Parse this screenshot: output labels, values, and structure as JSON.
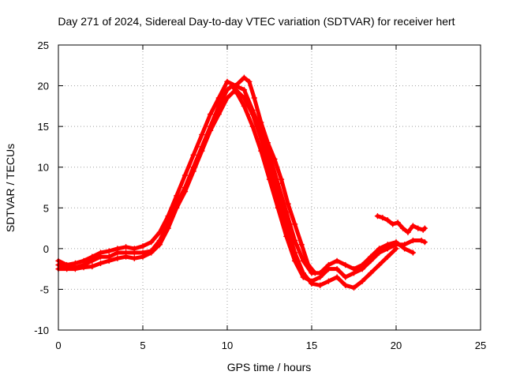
{
  "chart_data": {
    "type": "scatter",
    "title": "Day 271 of 2024, Sidereal Day-to-day VTEC variation (SDTVAR) for receiver hert",
    "xlabel": "GPS time / hours",
    "ylabel": "SDTVAR / TECUs",
    "xlim": [
      0,
      25
    ],
    "ylim": [
      -10,
      25
    ],
    "xticks": [
      0,
      5,
      10,
      15,
      20,
      25
    ],
    "yticks": [
      -10,
      -5,
      0,
      5,
      10,
      15,
      20,
      25
    ],
    "grid": true,
    "color": "#ff0000",
    "series": [
      {
        "name": "satellite-track-1",
        "x": [
          0.0,
          0.5,
          1.0,
          1.5,
          2.0,
          2.5,
          3.0,
          3.5,
          4.0,
          4.5,
          5.0,
          5.5,
          6.0,
          6.5,
          7.0,
          7.5,
          8.0,
          8.5,
          9.0,
          9.5,
          10.0,
          10.3,
          10.6,
          11.0,
          11.5,
          12.0,
          12.5,
          13.0,
          13.5,
          14.0,
          14.5,
          15.0,
          15.5,
          16.0,
          16.5,
          17.0,
          17.5,
          18.0,
          18.5,
          19.0,
          19.5,
          20.0,
          20.5,
          21.0,
          21.5,
          21.7
        ],
        "y": [
          -2.0,
          -2.2,
          -2.3,
          -2.0,
          -1.5,
          -1.0,
          -1.0,
          -0.5,
          -0.5,
          -0.5,
          -0.5,
          -0.3,
          1.0,
          3.0,
          5.5,
          7.5,
          10.0,
          12.5,
          15.0,
          17.5,
          19.5,
          20.0,
          19.0,
          17.5,
          15.0,
          12.0,
          8.5,
          5.0,
          1.5,
          -1.5,
          -3.5,
          -4.0,
          -3.5,
          -2.5,
          -2.5,
          -3.5,
          -3.0,
          -2.5,
          -1.5,
          -0.5,
          0.0,
          0.5,
          0.5,
          1.0,
          1.0,
          0.8
        ]
      },
      {
        "name": "satellite-track-2",
        "x": [
          0.0,
          0.5,
          1.0,
          1.5,
          2.0,
          2.5,
          3.0,
          3.5,
          4.0,
          4.5,
          5.0,
          5.5,
          6.0,
          6.5,
          7.0,
          7.5,
          8.0,
          8.5,
          9.0,
          9.5,
          10.0,
          10.5,
          11.0,
          11.5,
          12.0,
          12.5,
          13.0,
          13.5,
          14.0,
          14.5,
          15.0,
          15.5,
          16.0,
          16.5,
          17.0,
          17.5,
          18.0,
          18.5,
          19.0,
          19.5,
          20.0,
          20.5,
          21.0
        ],
        "y": [
          -1.5,
          -2.0,
          -1.8,
          -1.5,
          -1.0,
          -0.5,
          -0.3,
          0.0,
          0.2,
          0.0,
          0.3,
          0.8,
          2.0,
          4.0,
          6.5,
          9.0,
          11.5,
          14.0,
          16.5,
          18.5,
          20.5,
          20.0,
          19.5,
          17.0,
          14.5,
          11.5,
          8.0,
          4.5,
          1.0,
          -1.5,
          -3.0,
          -3.0,
          -2.0,
          -1.5,
          -2.0,
          -2.5,
          -2.0,
          -1.0,
          0.0,
          0.5,
          0.8,
          0.0,
          -0.5
        ]
      },
      {
        "name": "satellite-track-3",
        "x": [
          0.0,
          0.5,
          1.0,
          1.5,
          2.0,
          2.5,
          3.0,
          3.5,
          4.0,
          4.5,
          5.0,
          5.5,
          6.0,
          6.5,
          7.0,
          7.5,
          8.0,
          8.5,
          9.0,
          9.5,
          10.0,
          10.5,
          11.0,
          11.5,
          12.0,
          12.5,
          13.0,
          13.5,
          14.0,
          14.5,
          15.0,
          15.5,
          16.0,
          16.5,
          17.0,
          17.5,
          18.0,
          18.5,
          19.0,
          19.5,
          20.0
        ],
        "y": [
          -2.5,
          -2.5,
          -2.5,
          -2.3,
          -2.2,
          -1.8,
          -1.5,
          -1.2,
          -1.0,
          -1.2,
          -1.0,
          -0.5,
          0.5,
          2.5,
          5.0,
          7.0,
          9.5,
          12.0,
          14.5,
          16.5,
          18.5,
          19.5,
          18.5,
          16.5,
          13.5,
          10.0,
          6.5,
          3.0,
          -0.5,
          -3.0,
          -4.3,
          -4.5,
          -4.0,
          -3.5,
          -4.5,
          -4.8,
          -4.0,
          -3.0,
          -2.0,
          -1.0,
          0.0
        ]
      },
      {
        "name": "satellite-track-4",
        "x": [
          10.5,
          11.0,
          11.3,
          11.6,
          12.0,
          12.4,
          12.8,
          13.2,
          13.6,
          14.0,
          14.4,
          14.8,
          15.2
        ],
        "y": [
          20.0,
          21.0,
          20.5,
          18.5,
          15.5,
          13.0,
          11.0,
          8.5,
          5.5,
          3.0,
          0.5,
          -2.0,
          -3.0
        ]
      },
      {
        "name": "satellite-track-5",
        "x": [
          18.9,
          19.2,
          19.5,
          19.8,
          20.1,
          20.4,
          20.7,
          21.0,
          21.3,
          21.6,
          21.7
        ],
        "y": [
          4.0,
          3.8,
          3.5,
          3.0,
          3.2,
          2.5,
          2.0,
          2.8,
          2.5,
          2.3,
          2.5
        ]
      }
    ]
  }
}
